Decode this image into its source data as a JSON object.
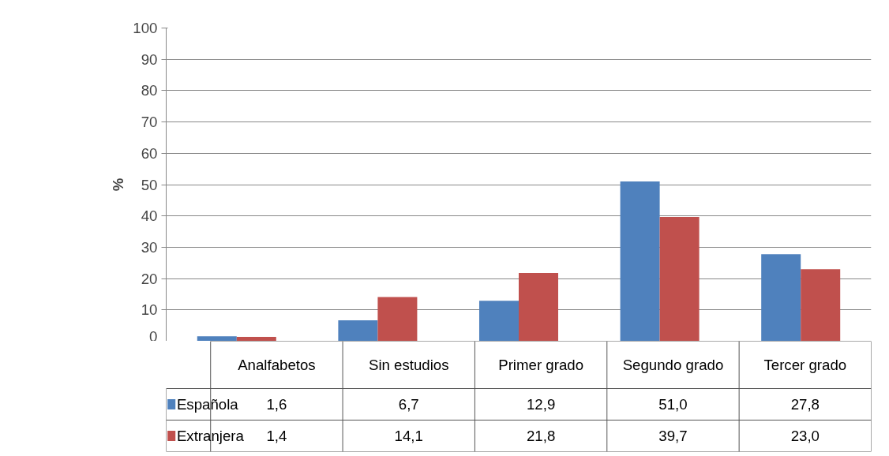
{
  "chart_data": {
    "type": "bar",
    "ylabel": "%",
    "categories": [
      "Analfabetos",
      "Sin estudios",
      "Primer grado",
      "Segundo grado",
      "Tercer grado"
    ],
    "series": [
      {
        "name": "Española",
        "color": "#4f81bd",
        "values": [
          1.6,
          6.7,
          12.9,
          51.0,
          27.8
        ],
        "value_labels": [
          "1,6",
          "6,7",
          "12,9",
          "51,0",
          "27,8"
        ]
      },
      {
        "name": "Extranjera",
        "color": "#c0504d",
        "values": [
          1.4,
          14.1,
          21.8,
          39.7,
          23.0
        ],
        "value_labels": [
          "1,4",
          "14,1",
          "21,8",
          "39,7",
          "23,0"
        ]
      }
    ],
    "ylim": [
      0,
      100
    ],
    "yticks": [
      0,
      10,
      20,
      30,
      40,
      50,
      60,
      70,
      80,
      90,
      100
    ],
    "grid": "y",
    "legend": "bottom"
  }
}
